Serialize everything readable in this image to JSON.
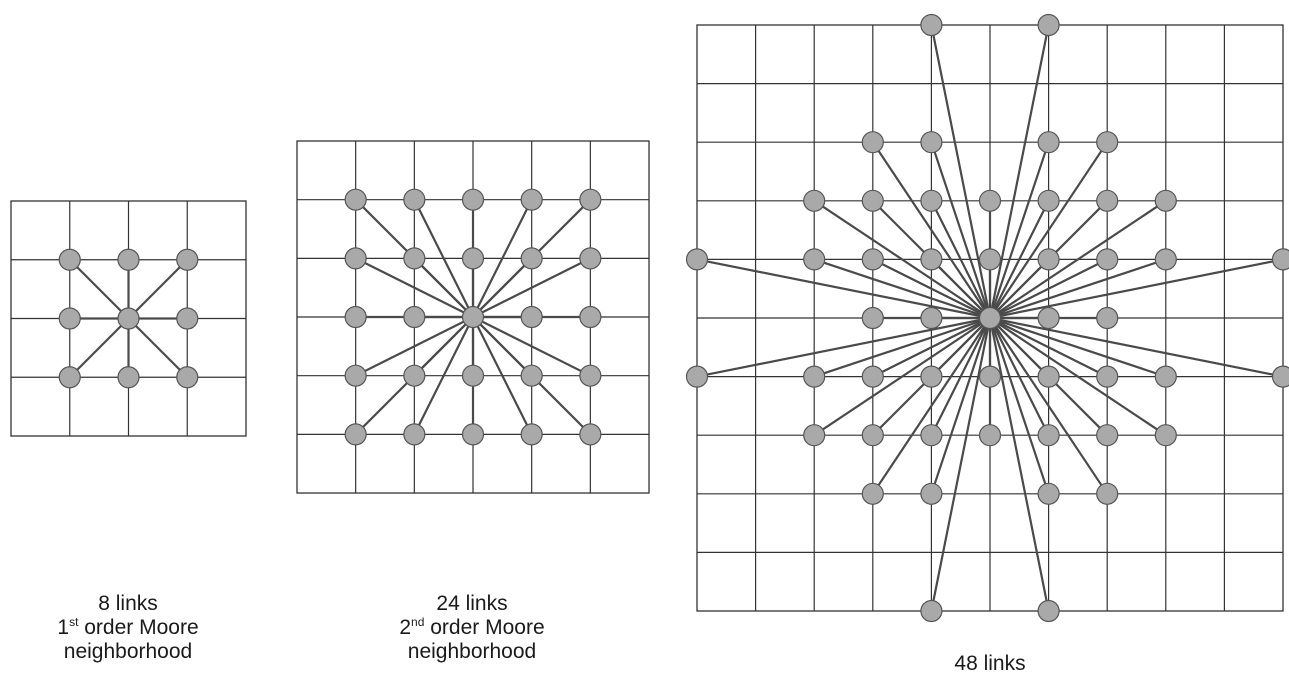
{
  "colors": {
    "node_fill": "#a9a9a9",
    "node_stroke": "#555555",
    "link": "#4a4a4a",
    "grid": "#333333"
  },
  "panels": [
    {
      "grid_cells": 4,
      "links": 8,
      "caption": {
        "line1": "8 links",
        "ordinal_num": "1",
        "ordinal_suffix": "st",
        "line2_rest": " order Moore",
        "line3": "neighborhood"
      }
    },
    {
      "grid_cells": 6,
      "links": 24,
      "caption": {
        "line1": "24 links",
        "ordinal_num": "2",
        "ordinal_suffix": "nd",
        "line2_rest": " order Moore",
        "line3": "neighborhood"
      }
    },
    {
      "grid_cells": 10,
      "links": 48,
      "caption": {
        "line1": "48 links"
      }
    }
  ],
  "neighbor_offsets_48": [
    [
      -1,
      -5
    ],
    [
      1,
      -5
    ],
    [
      -2,
      -3
    ],
    [
      -1,
      -3
    ],
    [
      1,
      -3
    ],
    [
      2,
      -3
    ],
    [
      -3,
      -2
    ],
    [
      -2,
      -2
    ],
    [
      -1,
      -2
    ],
    [
      0,
      -2
    ],
    [
      1,
      -2
    ],
    [
      2,
      -2
    ],
    [
      3,
      -2
    ],
    [
      -5,
      -1
    ],
    [
      -3,
      -1
    ],
    [
      -2,
      -1
    ],
    [
      -1,
      -1
    ],
    [
      0,
      -1
    ],
    [
      1,
      -1
    ],
    [
      2,
      -1
    ],
    [
      3,
      -1
    ],
    [
      5,
      -1
    ],
    [
      -2,
      0
    ],
    [
      -1,
      0
    ],
    [
      1,
      0
    ],
    [
      2,
      0
    ],
    [
      -5,
      1
    ],
    [
      -3,
      1
    ],
    [
      -2,
      1
    ],
    [
      -1,
      1
    ],
    [
      0,
      1
    ],
    [
      1,
      1
    ],
    [
      2,
      1
    ],
    [
      3,
      1
    ],
    [
      5,
      1
    ],
    [
      -3,
      2
    ],
    [
      -2,
      2
    ],
    [
      -1,
      2
    ],
    [
      0,
      2
    ],
    [
      1,
      2
    ],
    [
      2,
      2
    ],
    [
      3,
      2
    ],
    [
      -2,
      3
    ],
    [
      -1,
      3
    ],
    [
      1,
      3
    ],
    [
      2,
      3
    ],
    [
      -1,
      5
    ],
    [
      1,
      5
    ]
  ]
}
